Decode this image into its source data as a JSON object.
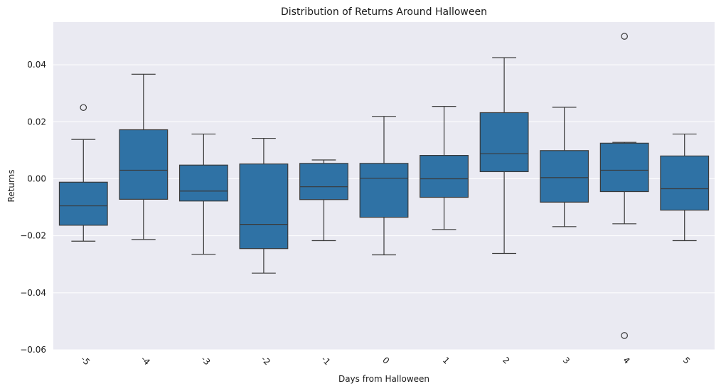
{
  "chart_data": {
    "type": "box",
    "title": "Distribution of Returns Around Halloween",
    "xlabel": "Days from Halloween",
    "ylabel": "Returns",
    "ylim": [
      -0.06,
      0.055
    ],
    "y_ticks": [
      -0.06,
      -0.04,
      -0.02,
      0.0,
      0.02,
      0.04
    ],
    "y_tick_labels": [
      "−0.06",
      "−0.04",
      "−0.02",
      "0.00",
      "0.02",
      "0.04"
    ],
    "grid": true,
    "categories": [
      "-5",
      "-4",
      "-3",
      "-2",
      "-1",
      "0",
      "1",
      "2",
      "3",
      "4",
      "5"
    ],
    "boxes": [
      {
        "whisker_low": -0.0219,
        "q1": -0.0163,
        "median": -0.0095,
        "q3": -0.0012,
        "whisker_high": 0.0138,
        "outliers": [
          0.025
        ]
      },
      {
        "whisker_low": -0.0213,
        "q1": -0.0072,
        "median": 0.003,
        "q3": 0.0172,
        "whisker_high": 0.0367,
        "outliers": []
      },
      {
        "whisker_low": -0.0265,
        "q1": -0.0078,
        "median": -0.0043,
        "q3": 0.0048,
        "whisker_high": 0.0157,
        "outliers": []
      },
      {
        "whisker_low": -0.0331,
        "q1": -0.0245,
        "median": -0.016,
        "q3": 0.0052,
        "whisker_high": 0.0142,
        "outliers": []
      },
      {
        "whisker_low": -0.0217,
        "q1": -0.0073,
        "median": -0.0028,
        "q3": 0.0054,
        "whisker_high": 0.0066,
        "outliers": []
      },
      {
        "whisker_low": -0.0267,
        "q1": -0.0135,
        "median": 0.0002,
        "q3": 0.0054,
        "whisker_high": 0.0219,
        "outliers": []
      },
      {
        "whisker_low": -0.0178,
        "q1": -0.0065,
        "median": 0.0,
        "q3": 0.0082,
        "whisker_high": 0.0254,
        "outliers": []
      },
      {
        "whisker_low": -0.0262,
        "q1": 0.0025,
        "median": 0.0088,
        "q3": 0.0232,
        "whisker_high": 0.0425,
        "outliers": []
      },
      {
        "whisker_low": -0.0168,
        "q1": -0.0082,
        "median": 0.0004,
        "q3": 0.0099,
        "whisker_high": 0.0251,
        "outliers": []
      },
      {
        "whisker_low": -0.0158,
        "q1": -0.0045,
        "median": 0.003,
        "q3": 0.0125,
        "whisker_high": 0.0128,
        "outliers": [
          0.05,
          -0.055
        ]
      },
      {
        "whisker_low": -0.0217,
        "q1": -0.011,
        "median": -0.0035,
        "q3": 0.008,
        "whisker_high": 0.0157,
        "outliers": []
      }
    ],
    "colors": {
      "box_fill": "#2f72a5",
      "line": "#3a3a3a",
      "plot_bg": "#eaeaf2",
      "grid": "#ffffff"
    }
  }
}
